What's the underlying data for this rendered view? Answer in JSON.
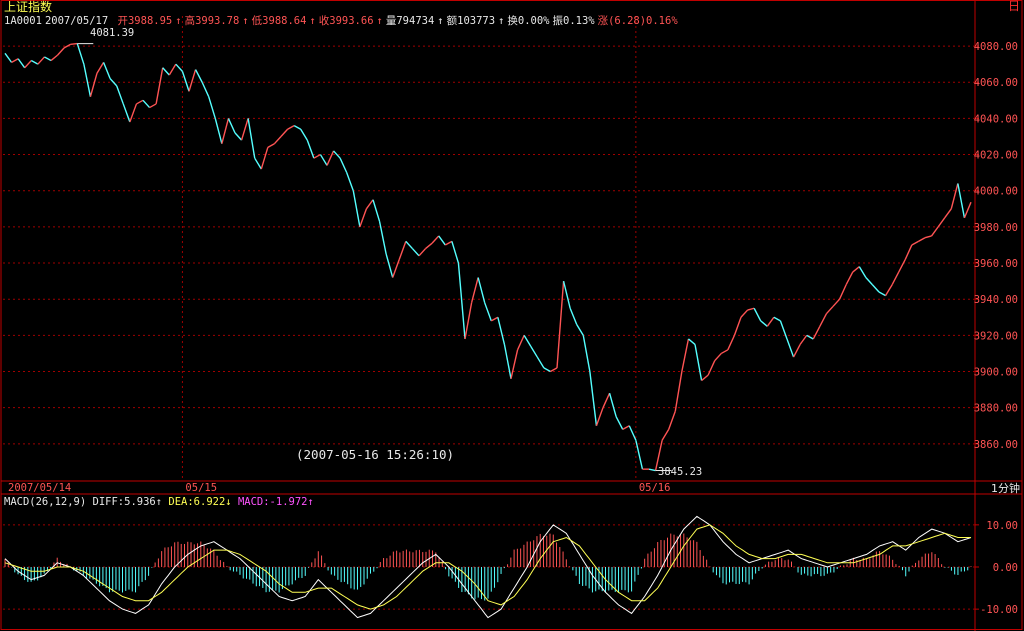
{
  "header": {
    "index_name": "上证指数",
    "code": "1A0001",
    "date": "2007/05/17",
    "open": "开3988.95",
    "high": "高3993.78",
    "low": "低3988.64",
    "close": "收3993.66",
    "volume": "量794734",
    "amount": "额103773",
    "turnover": "换0.00%",
    "amplitude": "振0.13%",
    "change": "涨(6.28)0.16%",
    "up_arrow": "↑",
    "down_arrow": "↓"
  },
  "corner_label": "日",
  "period_label": "1分钟",
  "cursor_timestamp": "(2007-05-16 15:26:10)",
  "macd_header": {
    "params": "MACD(26,12,9)",
    "diff": "DIFF:5.936",
    "dea": "DEA:6.922",
    "macd": "MACD:-1.972"
  },
  "colors": {
    "up": "#ff5454",
    "down": "#54ffff",
    "grid": "#a00000",
    "frame": "#c00000",
    "diff_line": "#ffffff",
    "dea_line": "#ffff54",
    "axis_text": "#ff5454"
  },
  "chart_data": [
    {
      "type": "line",
      "name": "price",
      "ylim": [
        3840,
        4090
      ],
      "y_ticks": [
        "4080.00",
        "4060.00",
        "4040.00",
        "4020.00",
        "4000.00",
        "3980.00",
        "3960.00",
        "3940.00",
        "3920.00",
        "3900.00",
        "3880.00",
        "3860.00"
      ],
      "x_ticks": [
        {
          "label": "2007/05/14",
          "index": 0
        },
        {
          "label": "05/15",
          "index": 27
        },
        {
          "label": "05/16",
          "index": 96
        }
      ],
      "max_label": "4081.39",
      "min_label": "3845.23",
      "values": [
        4076,
        4071,
        4073,
        4068,
        4072,
        4070,
        4074,
        4072,
        4075,
        4079,
        4081,
        4081.39,
        4070,
        4052,
        4065,
        4071,
        4062,
        4058,
        4048,
        4038,
        4048,
        4050,
        4046,
        4048,
        4068,
        4064,
        4070,
        4066,
        4055,
        4067,
        4060,
        4052,
        4040,
        4026,
        4040,
        4032,
        4028,
        4040,
        4018,
        4012,
        4024,
        4026,
        4030,
        4034,
        4036,
        4034,
        4028,
        4018,
        4020,
        4014,
        4022,
        4018,
        4010,
        4000,
        3980,
        3990,
        3995,
        3983,
        3965,
        3952,
        3962,
        3972,
        3968,
        3964,
        3968,
        3971,
        3975,
        3970,
        3972,
        3960,
        3918,
        3938,
        3952,
        3938,
        3928,
        3930,
        3915,
        3896,
        3912,
        3920,
        3914,
        3908,
        3902,
        3900,
        3902,
        3950,
        3935,
        3926,
        3920,
        3900,
        3870,
        3880,
        3888,
        3875,
        3868,
        3870,
        3862,
        3846,
        3846,
        3845.23,
        3862,
        3868,
        3878,
        3900,
        3918,
        3915,
        3895,
        3898,
        3906,
        3910,
        3912,
        3920,
        3930,
        3934,
        3935,
        3928,
        3925,
        3930,
        3928,
        3918,
        3908,
        3915,
        3920,
        3918,
        3925,
        3932,
        3936,
        3940,
        3948,
        3955,
        3958,
        3952,
        3948,
        3944,
        3942,
        3948,
        3955,
        3962,
        3970,
        3972,
        3974,
        3975,
        3980,
        3985,
        3990,
        4004,
        3985,
        3993.66
      ]
    },
    {
      "type": "bar",
      "name": "MACD",
      "ylim": [
        -14,
        14
      ],
      "y_ticks": [
        "10.00",
        "0.00",
        "-10.00"
      ],
      "series": [
        {
          "name": "DIFF",
          "values": [
            2,
            -1,
            -3,
            -2,
            1,
            0,
            -2,
            -5,
            -8,
            -10,
            -11,
            -9,
            -4,
            0,
            3,
            5,
            6,
            4,
            2,
            -1,
            -4,
            -7,
            -8,
            -7,
            -3,
            -6,
            -9,
            -12,
            -11,
            -8,
            -5,
            -2,
            1,
            3,
            0,
            -4,
            -8,
            -12,
            -10,
            -5,
            0,
            6,
            10,
            8,
            3,
            -2,
            -6,
            -9,
            -11,
            -7,
            -2,
            4,
            9,
            12,
            10,
            6,
            3,
            1,
            2,
            3,
            4,
            2,
            1,
            0,
            1,
            2,
            3,
            5,
            6,
            4,
            7,
            9,
            8,
            6,
            7
          ]
        },
        {
          "name": "DEA",
          "values": [
            1,
            0,
            -1,
            -1,
            0,
            0,
            -1,
            -3,
            -5,
            -7,
            -8,
            -8,
            -6,
            -3,
            0,
            2,
            4,
            4,
            3,
            1,
            -1,
            -4,
            -6,
            -6,
            -5,
            -5,
            -7,
            -9,
            -10,
            -9,
            -7,
            -4,
            -1,
            1,
            1,
            -1,
            -4,
            -8,
            -9,
            -7,
            -3,
            2,
            6,
            7,
            5,
            1,
            -3,
            -6,
            -8,
            -8,
            -5,
            0,
            5,
            9,
            10,
            8,
            5,
            3,
            2,
            2,
            3,
            3,
            2,
            1,
            1,
            1,
            2,
            3,
            5,
            5,
            6,
            7,
            8,
            7,
            7
          ]
        },
        {
          "name": "MACD",
          "values": [
            1,
            -1,
            -2,
            -1,
            1,
            0,
            -1,
            -2,
            -3,
            -3,
            -3,
            -1,
            2,
            3,
            3,
            3,
            2,
            0,
            -1,
            -2,
            -3,
            -3,
            -2,
            -1,
            2,
            -1,
            -2,
            -3,
            -1,
            1,
            2,
            2,
            2,
            2,
            -1,
            -3,
            -4,
            -4,
            -1,
            2,
            3,
            4,
            4,
            1,
            -2,
            -3,
            -3,
            -3,
            -3,
            1,
            3,
            4,
            4,
            3,
            0,
            -2,
            -2,
            -2,
            0,
            1,
            1,
            -1,
            -1,
            -1,
            0,
            1,
            1,
            2,
            1,
            -1,
            1,
            2,
            0,
            -1,
            0
          ]
        }
      ]
    }
  ]
}
